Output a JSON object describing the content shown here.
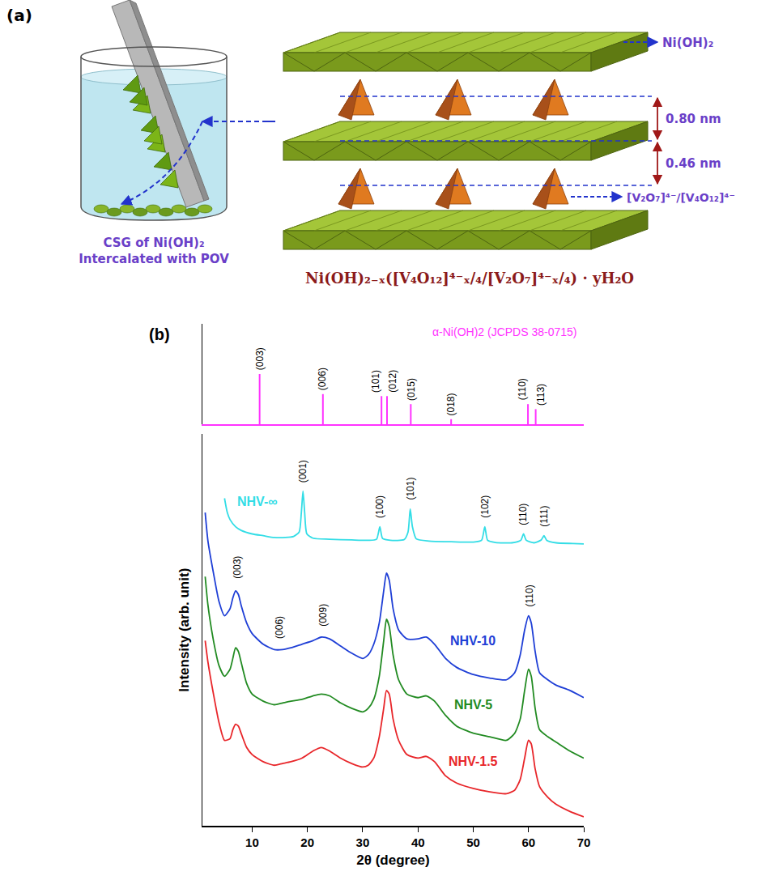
{
  "panel_a": {
    "label": "(a)",
    "caption": [
      "CSG of Ni(OH)₂",
      "Intercalated with POV"
    ],
    "layer_label": "Ni(OH)₂",
    "spacing_labels": [
      "0.80 nm",
      "0.46 nm"
    ],
    "anion_label": "[V₂O₇]⁴⁻/[V₄O₁₂]⁴⁻",
    "formula": "Ni(OH)₂₋ₓ([V₄O₁₂]⁴⁻ₓ/₄/[V₂O₇]⁴⁻ₓ/₄) · yH₂O"
  },
  "chart_data": {
    "type": "line",
    "label": "(b)",
    "x_label": "2θ (degree)",
    "y_label": "Intensity (arb. unit)",
    "xlim": [
      1,
      70
    ],
    "xticks": [
      10,
      20,
      30,
      40,
      50,
      60,
      70
    ],
    "ylim": [
      0,
      110
    ],
    "tick_labels": "x",
    "grid": false,
    "reference": {
      "type": "stick",
      "title": "α-Ni(OH)2 (JCPDS 38-0715)",
      "color": "#ff33ff",
      "ylim": [
        0,
        100
      ],
      "x": [
        11.35,
        22.8,
        33.4,
        34.4,
        38.7,
        46.0,
        59.9,
        61.3
      ],
      "values": [
        50,
        30,
        28,
        28,
        20,
        5,
        20,
        15
      ],
      "labels": [
        "(003)",
        "(006)",
        "(101)",
        "(012)",
        "(015)",
        "(018)",
        "(110)",
        "(113)"
      ]
    },
    "series": [
      {
        "name": "NHV-∞",
        "color": "#33dde6",
        "x": [
          5,
          5.5,
          6,
          7,
          8,
          10,
          12,
          14,
          16,
          17.5,
          18.5,
          18.9,
          19.2,
          19.5,
          19.9,
          21,
          24,
          28,
          31,
          32.5,
          33.1,
          33.6,
          35,
          37.5,
          38.2,
          38.6,
          39.0,
          39.7,
          42,
          46,
          50,
          51.5,
          52.1,
          52.6,
          54,
          57,
          58.6,
          59.1,
          59.6,
          61,
          62.3,
          62.8,
          63.3,
          65,
          68,
          70
        ],
        "values": [
          92,
          88,
          86,
          84,
          83,
          82,
          81.5,
          81,
          81,
          81.3,
          82.5,
          88,
          94,
          88,
          82,
          80.8,
          80.5,
          80.3,
          80.2,
          80.5,
          84,
          80.7,
          80.2,
          80.4,
          82.5,
          89,
          84,
          80.6,
          80,
          79.8,
          79.7,
          80.2,
          84,
          80.2,
          79.6,
          79.5,
          80.2,
          82,
          80.2,
          79.5,
          80.3,
          81.5,
          80.2,
          79.5,
          79.3,
          79.2
        ]
      },
      {
        "name": "NHV-10",
        "color": "#1f3fd6",
        "x": [
          1.5,
          2,
          3,
          4,
          5,
          6,
          6.5,
          7,
          7.5,
          8,
          9,
          10,
          12,
          14,
          15.5,
          17,
          19,
          21,
          22.5,
          24,
          26,
          28,
          30,
          31,
          32,
          33,
          33.8,
          34.3,
          34.8,
          35.5,
          36.5,
          38,
          40,
          41.5,
          43,
          45,
          47,
          50,
          53,
          56,
          57.5,
          58.5,
          59.3,
          60,
          60.5,
          61.2,
          62,
          63.5,
          65,
          67.5,
          70
        ],
        "values": [
          88,
          80,
          71,
          63,
          59,
          61,
          64,
          66,
          65,
          62,
          57,
          54,
          51,
          49.5,
          49.5,
          50,
          51,
          52,
          53,
          52.5,
          50.5,
          48.5,
          47,
          48,
          51,
          57,
          66,
          71,
          69,
          61,
          55,
          52.5,
          52.5,
          53,
          51,
          47,
          44.5,
          42.5,
          41.5,
          41,
          43,
          48,
          55,
          59,
          57,
          49,
          43,
          41,
          39.5,
          38,
          36
        ]
      },
      {
        "name": "NHV-5",
        "color": "#228b22",
        "x": [
          1.5,
          2,
          3,
          4,
          5,
          6,
          6.5,
          7,
          7.5,
          8,
          9,
          10,
          12,
          14,
          15.5,
          17,
          19,
          21,
          22.5,
          24,
          26,
          28,
          30,
          31,
          32,
          33,
          33.8,
          34.3,
          34.8,
          35.5,
          36.5,
          38,
          40,
          41.5,
          43,
          45,
          47,
          50,
          53,
          56,
          57.5,
          58.5,
          59.3,
          60,
          60.5,
          61.2,
          62,
          63.5,
          65,
          67.5,
          70
        ],
        "values": [
          70,
          62,
          52,
          45,
          42,
          44,
          47,
          50,
          49,
          46,
          40,
          37,
          35,
          34,
          34.5,
          35,
          35.5,
          36.5,
          37,
          36.5,
          34.5,
          33,
          32,
          33,
          35.5,
          42,
          52,
          58,
          56,
          48,
          41,
          37,
          36,
          36.5,
          35,
          31,
          28,
          26,
          25,
          24,
          26,
          30,
          38,
          44,
          42,
          33,
          27,
          25,
          23.5,
          21,
          19
        ]
      },
      {
        "name": "NHV-1.5",
        "color": "#e8262a",
        "x": [
          1.5,
          2,
          3,
          4,
          5,
          6,
          6.5,
          7,
          7.5,
          8,
          9,
          10,
          12,
          14,
          15.5,
          17,
          19,
          21,
          22.5,
          24,
          26,
          28,
          30,
          31,
          32,
          33,
          33.8,
          34.3,
          34.8,
          35.5,
          36.5,
          38,
          40,
          41.5,
          43,
          45,
          47,
          50,
          53,
          56,
          57.5,
          58.5,
          59.3,
          60,
          60.5,
          61.2,
          62,
          63.5,
          65,
          67.5,
          70
        ],
        "values": [
          52,
          46,
          37,
          29,
          24,
          24.5,
          27,
          28.5,
          28,
          26,
          22,
          20,
          18,
          17,
          17.5,
          18,
          19,
          21,
          22,
          21,
          19,
          17.5,
          16.5,
          17,
          19,
          25,
          33,
          38,
          37,
          30,
          24,
          20,
          19,
          19.5,
          18,
          14,
          12,
          10.5,
          9.5,
          9,
          10,
          13,
          19,
          24,
          23,
          16,
          11,
          8,
          6,
          4,
          2.5
        ]
      }
    ],
    "annotations": [
      {
        "text": "(003)",
        "x": 7.3,
        "y": 69
      },
      {
        "text": "(006)",
        "x": 15.0,
        "y": 52
      },
      {
        "text": "(009)",
        "x": 22.8,
        "y": 55.5
      },
      {
        "text": "(110)",
        "x": 60.2,
        "y": 61
      },
      {
        "text": "(001)",
        "x": 19.2,
        "y": 96
      },
      {
        "text": "(100)",
        "x": 33.1,
        "y": 86
      },
      {
        "text": "(101)",
        "x": 38.6,
        "y": 91
      },
      {
        "text": "(102)",
        "x": 52.1,
        "y": 86
      },
      {
        "text": "(110)",
        "x": 59.1,
        "y": 84
      },
      {
        "text": "(111)",
        "x": 62.8,
        "y": 83.5
      }
    ]
  }
}
